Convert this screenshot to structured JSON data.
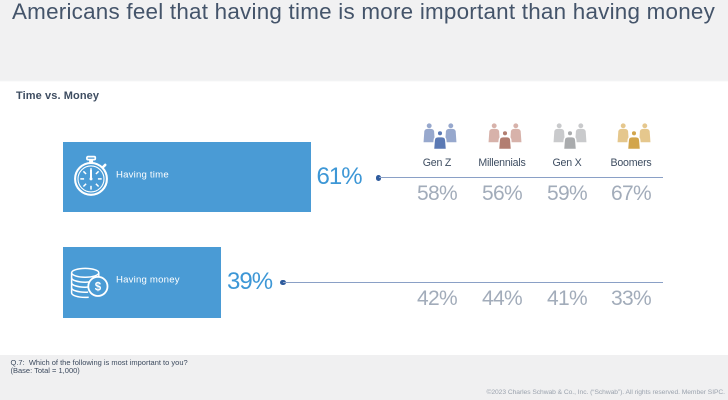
{
  "title": "Americans feel that having time is more important than having money",
  "section_label": "Time vs. Money",
  "chart_data": {
    "type": "bar",
    "orientation": "horizontal",
    "title": "Time vs. Money",
    "categories": [
      "Having time",
      "Having money"
    ],
    "values": [
      61,
      39
    ],
    "value_labels": [
      "61%",
      "39%"
    ],
    "unit": "%",
    "xlim": [
      0,
      100
    ],
    "grid": false,
    "legend": false,
    "breakdown": {
      "categories": [
        "Gen Z",
        "Millennials",
        "Gen X",
        "Boomers"
      ],
      "series": [
        {
          "name": "Having time",
          "values": [
            58,
            56,
            59,
            67
          ],
          "labels": [
            "58%",
            "56%",
            "59%",
            "67%"
          ]
        },
        {
          "name": "Having money",
          "values": [
            42,
            44,
            41,
            33
          ],
          "labels": [
            "42%",
            "44%",
            "41%",
            "33%"
          ]
        }
      ]
    }
  },
  "bars": [
    {
      "label": "Having time",
      "icon": "stopwatch-icon",
      "value": 61,
      "value_label": "61%"
    },
    {
      "label": "Having money",
      "icon": "coins-icon",
      "value": 39,
      "value_label": "39%"
    }
  ],
  "generations": [
    {
      "label": "Gen Z",
      "front_color": "#5b79b4",
      "back_color": "#97a8cd"
    },
    {
      "label": "Millennials",
      "front_color": "#b27e71",
      "back_color": "#d7b2aa"
    },
    {
      "label": "Gen X",
      "front_color": "#a9abad",
      "back_color": "#c9cacc"
    },
    {
      "label": "Boomers",
      "front_color": "#d2a54c",
      "back_color": "#e5c78d"
    }
  ],
  "footnote_line1": "Q.7:  Which of the following is most important to you?",
  "footnote_line2": "(Base: Total = 1,000)",
  "copyright": "©2023 Charles Schwab & Co., Inc. (“Schwab”). All rights reserved. Member SIPC.",
  "colors": {
    "bar_blue": "#4a9bd5",
    "value_blue": "#3d97d6",
    "title_navy": "#44546a",
    "line_steel": "#8aa0c6",
    "dot_navy": "#2e5b9d",
    "muted_pct_gray": "#a2acba",
    "header_band_gray": "#f1f1f2",
    "footer_band_gray": "#f0f0f1"
  }
}
